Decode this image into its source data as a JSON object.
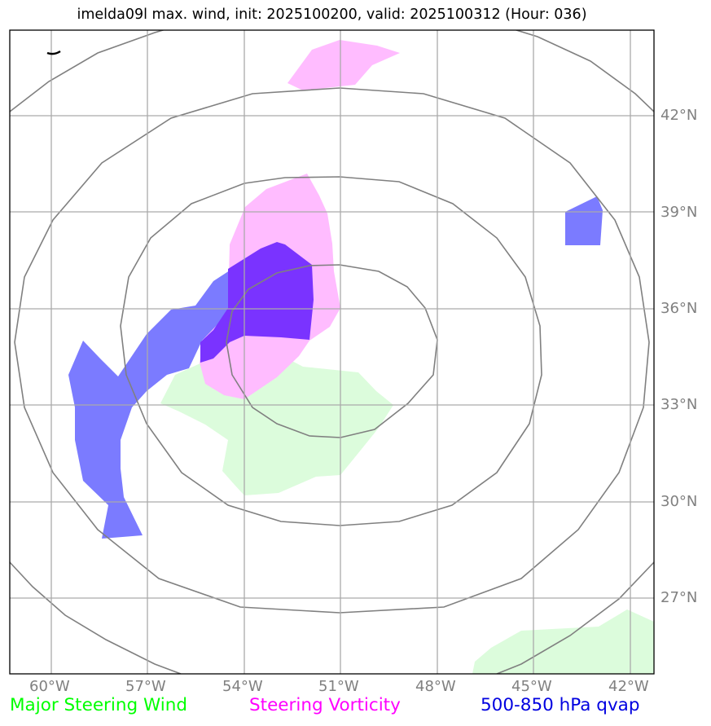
{
  "title": "imelda09l max. wind, init: 2025100200, valid: 2025100312 (Hour: 036)",
  "latitude_labels": [
    "42°N",
    "39°N",
    "36°N",
    "33°N",
    "30°N",
    "27°N"
  ],
  "longitude_labels": [
    "60°W",
    "57°W",
    "54°W",
    "51°W",
    "48°W",
    "45°W",
    "42°W"
  ],
  "legend": {
    "wind": {
      "label": "Major Steering Wind",
      "color": "#00ff00"
    },
    "vorticity": {
      "label": "Steering Vorticity",
      "color": "#ff00ff"
    },
    "qvap": {
      "label": "500-850 hPa qvap",
      "color": "#0000e0"
    }
  },
  "colors": {
    "grid": "#aaaaaa",
    "range_rings": "#808080",
    "wind_fill": "#dcfcdc",
    "vorticity_fill": "#ffbcff",
    "qvap_fill": "#7b7bff",
    "overlap_fill": "#7a33ff"
  },
  "range_rings_count": 4
}
